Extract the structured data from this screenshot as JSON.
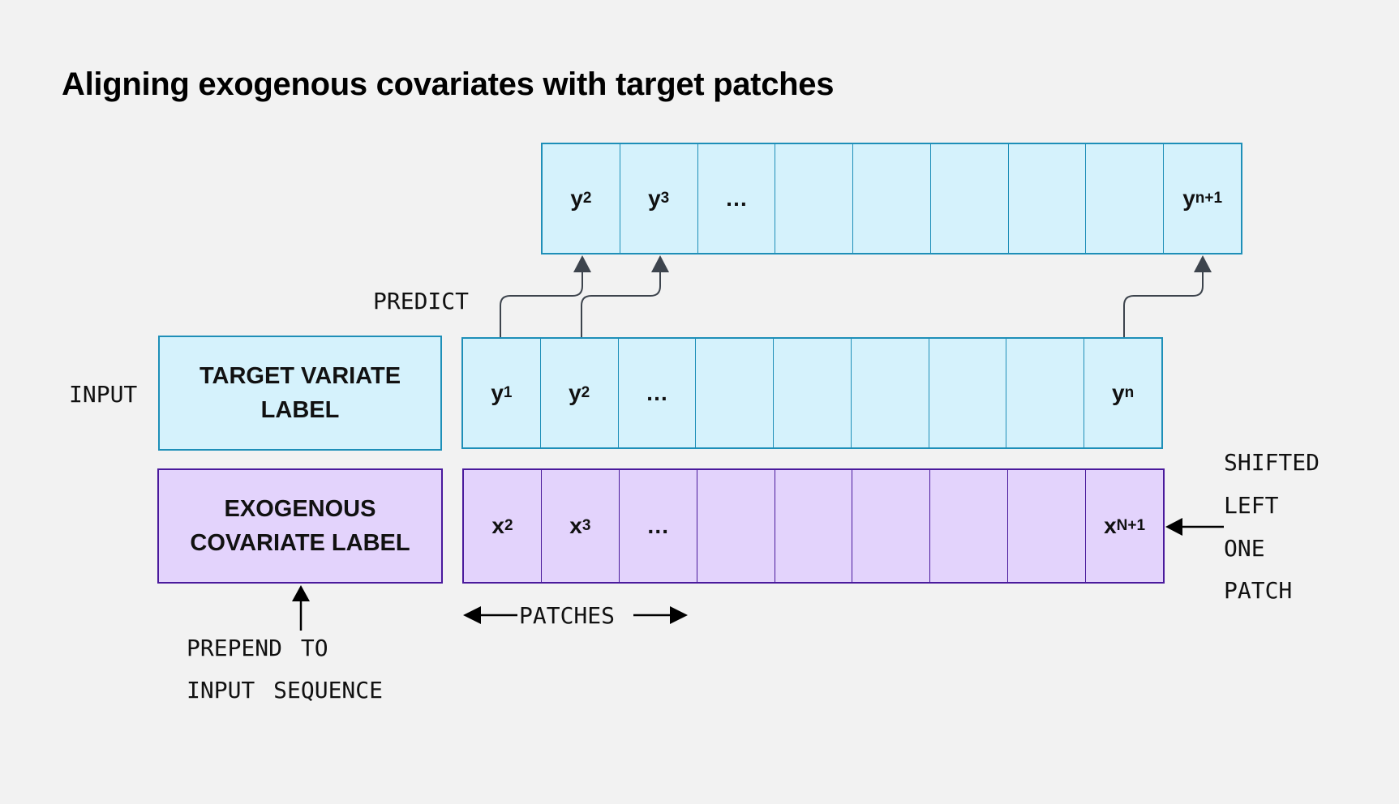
{
  "title": "Aligning exogenous covariates with target patches",
  "colors": {
    "target_fill": "#d5f2fc",
    "target_border": "#1e8fb8",
    "covariate_fill": "#e3d3fc",
    "covariate_border": "#4a1a9c",
    "arrow": "#3d444d",
    "background": "#f2f2f2"
  },
  "output_row": [
    {
      "b": "y",
      "s": "2"
    },
    {
      "b": "y",
      "s": "3"
    },
    {
      "b": "…",
      "s": ""
    },
    {
      "b": "",
      "s": ""
    },
    {
      "b": "",
      "s": ""
    },
    {
      "b": "",
      "s": ""
    },
    {
      "b": "",
      "s": ""
    },
    {
      "b": "",
      "s": ""
    },
    {
      "b": "y",
      "s": "n+1"
    }
  ],
  "target_row": [
    {
      "b": "y",
      "s": "1"
    },
    {
      "b": "y",
      "s": "2"
    },
    {
      "b": "…",
      "s": ""
    },
    {
      "b": "",
      "s": ""
    },
    {
      "b": "",
      "s": ""
    },
    {
      "b": "",
      "s": ""
    },
    {
      "b": "",
      "s": ""
    },
    {
      "b": "",
      "s": ""
    },
    {
      "b": "y",
      "s": "n"
    }
  ],
  "covariate_row": [
    {
      "b": "x",
      "s": "2"
    },
    {
      "b": "x",
      "s": "3"
    },
    {
      "b": "…",
      "s": ""
    },
    {
      "b": "",
      "s": ""
    },
    {
      "b": "",
      "s": ""
    },
    {
      "b": "",
      "s": ""
    },
    {
      "b": "",
      "s": ""
    },
    {
      "b": "",
      "s": ""
    },
    {
      "b": "x",
      "s": "N+1"
    }
  ],
  "target_label": [
    "TARGET VARIATE",
    "LABEL"
  ],
  "covariate_label": [
    "EXOGENOUS",
    "COVARIATE LABEL"
  ],
  "annotations": {
    "predict": "PREDICT",
    "input": "INPUT",
    "patches": "PATCHES",
    "prepend": [
      "PREPEND TO",
      "INPUT SEQUENCE"
    ],
    "shifted": [
      "SHIFTED",
      "LEFT",
      "ONE",
      "PATCH"
    ]
  }
}
